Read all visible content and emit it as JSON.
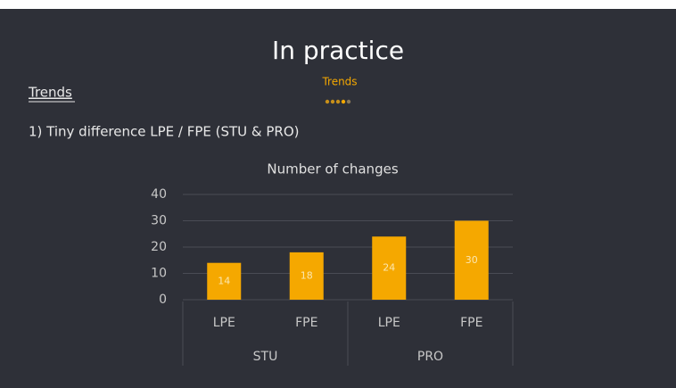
{
  "slide": {
    "title": "In practice",
    "section": "Trends",
    "heading": "Trends",
    "point": "1) Tiny difference LPE / FPE (STU & PRO)"
  },
  "chart_data": {
    "type": "bar",
    "title": "Number of changes",
    "categories": [
      "LPE",
      "FPE",
      "LPE",
      "FPE"
    ],
    "groups": [
      "STU",
      "PRO"
    ],
    "values": [
      14,
      18,
      24,
      30
    ],
    "color": "#f5a800",
    "ylim": [
      0,
      40
    ],
    "yticks": [
      0,
      10,
      20,
      30,
      40
    ],
    "grid": true
  }
}
